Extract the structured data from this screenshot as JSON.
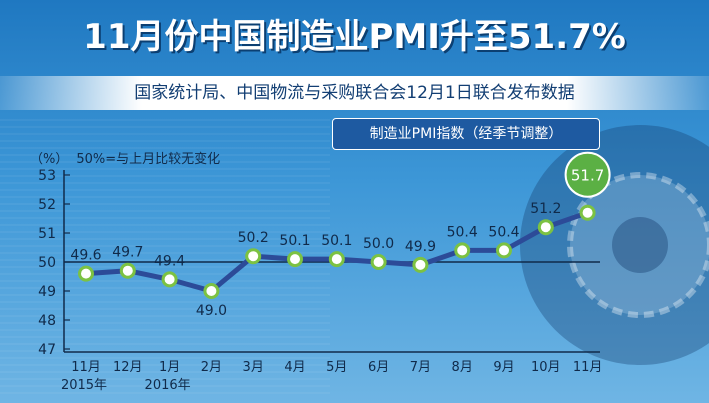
{
  "header": {
    "title": "11月份中国制造业PMI升至51.7%",
    "subtitle": "国家统计局、中国物流与采购联合会12月1日联合发布数据"
  },
  "notes": {
    "unit": "（%）",
    "reference": "50%=与上月比较无变化"
  },
  "colors": {
    "line": "#2c4b98",
    "marker_fill": "#ffffff",
    "marker_stroke": "#7cc242",
    "highlight": "#5bb044",
    "axis": "#102a4a"
  },
  "chart_data": {
    "type": "line",
    "title": "",
    "legend": "制造业PMI指数（经季节调整）",
    "xlabel": "",
    "ylabel": "",
    "ylim": [
      47,
      53
    ],
    "yticks": [
      47,
      48,
      49,
      50,
      51,
      52,
      53
    ],
    "reference_line": 50,
    "categories": [
      "11月",
      "12月",
      "1月",
      "2月",
      "3月",
      "4月",
      "5月",
      "6月",
      "7月",
      "8月",
      "9月",
      "10月",
      "11月"
    ],
    "year_labels": [
      {
        "index": 0,
        "text": "2015年"
      },
      {
        "index": 2,
        "text": "2016年"
      }
    ],
    "values": [
      49.6,
      49.7,
      49.4,
      49.0,
      50.2,
      50.1,
      50.1,
      50.0,
      49.9,
      50.4,
      50.4,
      51.2,
      51.7
    ],
    "value_labels": [
      "49.6",
      "49.7",
      "49.4",
      "49.0",
      "50.2",
      "50.1",
      "50.1",
      "50.0",
      "49.9",
      "50.4",
      "50.4",
      "51.2",
      "51.7"
    ],
    "highlight_index": 12,
    "grid": false
  }
}
